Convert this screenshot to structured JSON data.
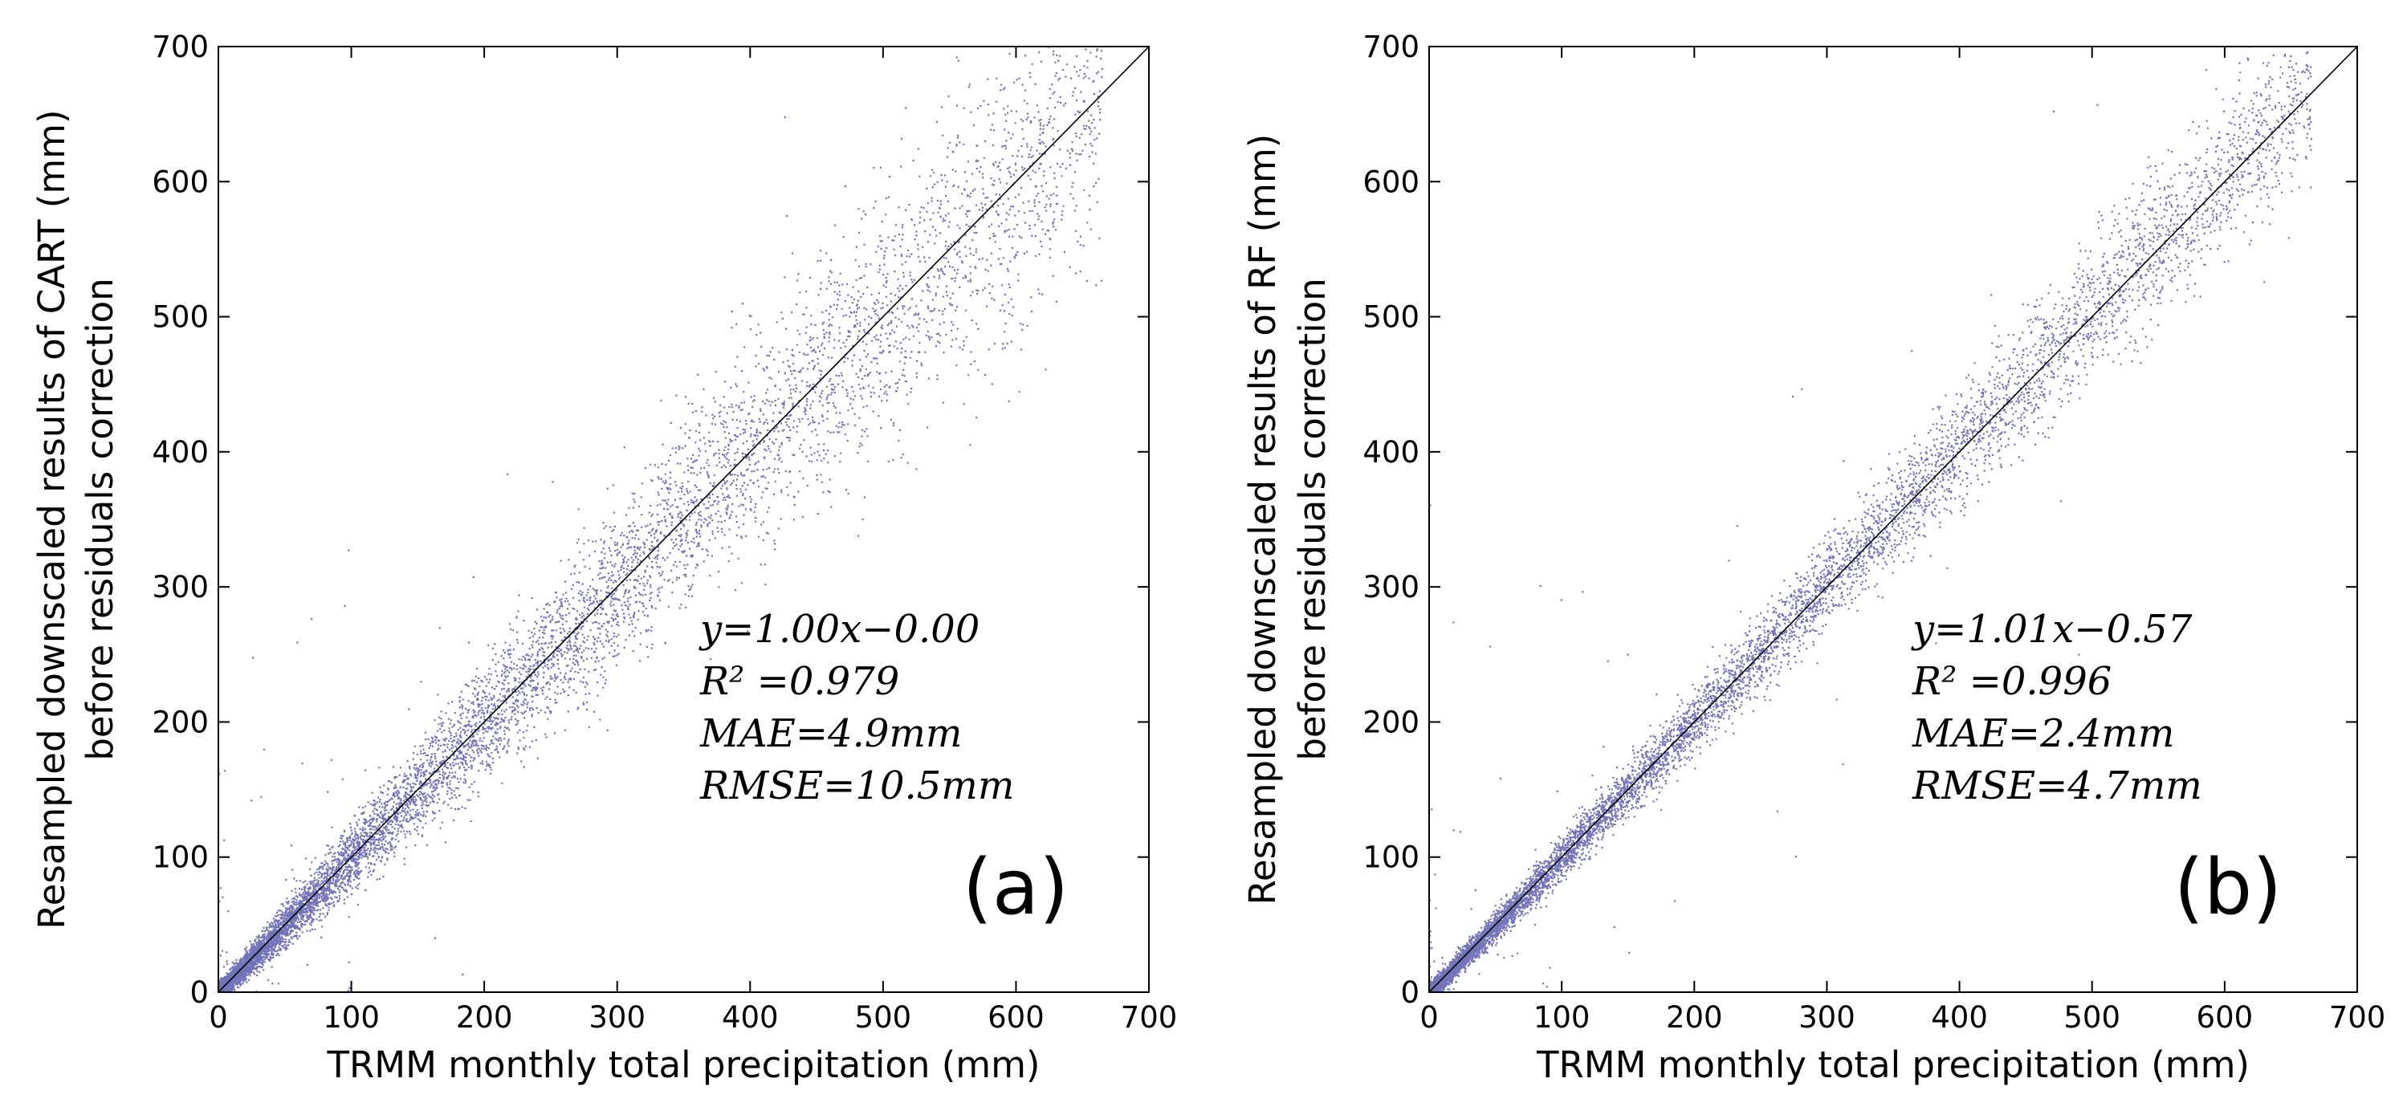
{
  "chart_data": [
    {
      "type": "scatter",
      "panel_label": "(a)",
      "xlabel": "TRMM monthly total precipitation (mm)",
      "ylabel_lines": [
        "Resampled downscaled results of CART (mm)",
        "before residuals correction"
      ],
      "xlim": [
        0,
        700
      ],
      "ylim": [
        0,
        700
      ],
      "xticks": [
        0,
        100,
        200,
        300,
        400,
        500,
        600,
        700
      ],
      "yticks": [
        0,
        100,
        200,
        300,
        400,
        500,
        600,
        700
      ],
      "xtick_labels": [
        "0",
        "100",
        "200",
        "300",
        "400",
        "500",
        "600",
        "700"
      ],
      "ytick_labels": [
        "0",
        "100",
        "200",
        "300",
        "400",
        "500",
        "600",
        "700"
      ],
      "grid": false,
      "point_color": "#000080",
      "reference_line": {
        "slope": 1,
        "intercept": 0
      },
      "fit": {
        "slope": 1.0,
        "intercept": -0.0
      },
      "stats_lines": [
        "y=1.00x−0.00",
        "R² =0.979",
        "MAE=4.9mm",
        "RMSE=10.5mm"
      ],
      "metrics": {
        "R2": 0.979,
        "MAE_mm": 4.9,
        "RMSE_mm": 10.5
      },
      "spread": 0.09
    },
    {
      "type": "scatter",
      "panel_label": "(b)",
      "xlabel": "TRMM monthly total precipitation (mm)",
      "ylabel_lines": [
        "Resampled downscaled results of RF (mm)",
        "before residuals correction"
      ],
      "xlim": [
        0,
        700
      ],
      "ylim": [
        0,
        700
      ],
      "xticks": [
        0,
        100,
        200,
        300,
        400,
        500,
        600,
        700
      ],
      "yticks": [
        0,
        100,
        200,
        300,
        400,
        500,
        600,
        700
      ],
      "xtick_labels": [
        "0",
        "100",
        "200",
        "300",
        "400",
        "500",
        "600",
        "700"
      ],
      "ytick_labels": [
        "0",
        "100",
        "200",
        "300",
        "400",
        "500",
        "600",
        "700"
      ],
      "grid": false,
      "point_color": "#000080",
      "reference_line": {
        "slope": 1,
        "intercept": 0
      },
      "fit": {
        "slope": 1.01,
        "intercept": -0.57
      },
      "stats_lines": [
        "y=1.01x−0.57",
        "R² =0.996",
        "MAE=2.4mm",
        "RMSE=4.7mm"
      ],
      "metrics": {
        "R2": 0.996,
        "MAE_mm": 2.4,
        "RMSE_mm": 4.7
      },
      "spread": 0.045
    }
  ]
}
